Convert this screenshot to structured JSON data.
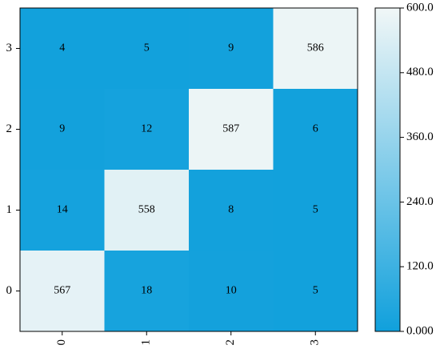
{
  "chart_data": {
    "type": "heatmap",
    "x_categories": [
      "0",
      "1",
      "2",
      "3"
    ],
    "y_categories": [
      "0",
      "1",
      "2",
      "3"
    ],
    "values": [
      [
        567,
        18,
        10,
        5
      ],
      [
        14,
        558,
        8,
        5
      ],
      [
        9,
        12,
        587,
        6
      ],
      [
        4,
        5,
        9,
        586
      ]
    ],
    "colorscale": [
      "#10a0dc",
      "#f1f7f7"
    ],
    "zlim": [
      0,
      600
    ],
    "zticks": [
      {
        "value": 0,
        "label": "0.000"
      },
      {
        "value": 120,
        "label": "120.0"
      },
      {
        "value": 240,
        "label": "240.0"
      },
      {
        "value": 360,
        "label": "360.0"
      },
      {
        "value": 480,
        "label": "480.0"
      },
      {
        "value": 600,
        "label": "600.0"
      }
    ]
  }
}
